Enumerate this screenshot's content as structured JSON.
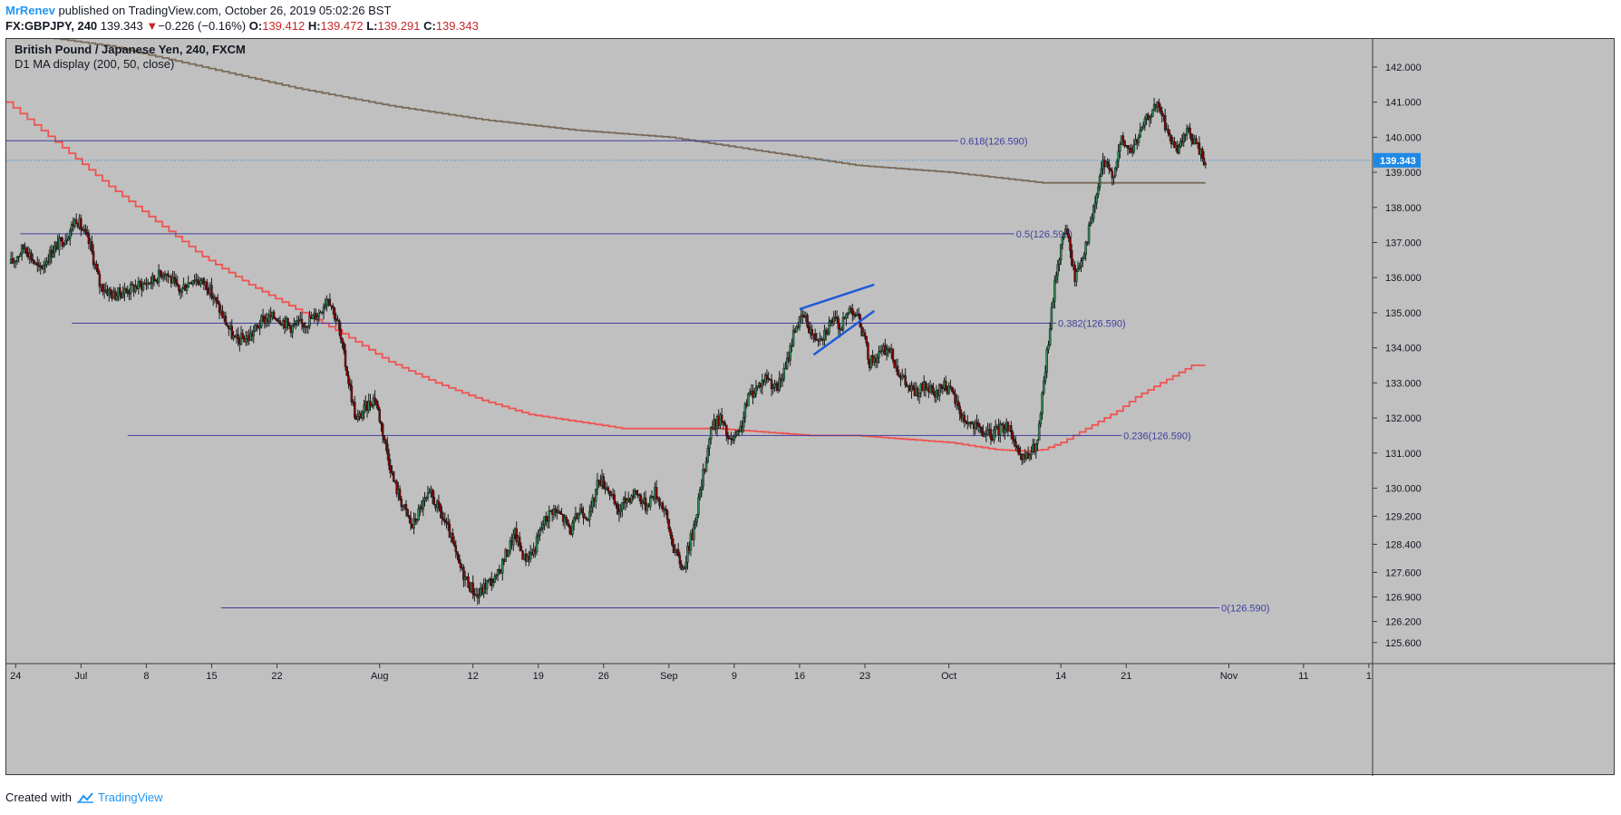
{
  "header": {
    "author": "MrRenev",
    "published_text": " published on TradingView.com, October 26, 2019 05:02:26 BST",
    "symbol": "FX:GBPJPY, 240",
    "last": "139.343",
    "down_arrow": "▼",
    "change": "−0.226 (−0.16%)",
    "o_label": "O:",
    "o_value": "139.412",
    "h_label": "H:",
    "h_value": "139.472",
    "l_label": "L:",
    "l_value": "139.291",
    "c_label": "C:",
    "c_value": "139.343"
  },
  "legend": {
    "title": "British Pound / Japanese Yen, 240, FXCM",
    "indicator": "D1 MA display (200, 50, close)"
  },
  "footer": {
    "created_with": "Created with",
    "brand": "TradingView"
  },
  "colors": {
    "background": "#c0c0c0",
    "candle_up": "#2e8b57",
    "candle_down": "#8b0000",
    "wick": "#1a1a1a",
    "ma200": "#7a6a58",
    "ma50": "#ef5350",
    "fib": "#3f3f9f",
    "trendline": "#1e5bd6",
    "price_tag": "#1e88e5"
  },
  "chart_data": {
    "type": "candlestick",
    "title": "British Pound / Japanese Yen, 240, FXCM",
    "ylim": [
      125.0,
      142.8
    ],
    "y_ticks": [
      {
        "v": 142.0,
        "label": "142.000"
      },
      {
        "v": 141.0,
        "label": "141.000"
      },
      {
        "v": 140.0,
        "label": "140.000"
      },
      {
        "v": 139.0,
        "label": "139.000"
      },
      {
        "v": 138.0,
        "label": "138.000"
      },
      {
        "v": 137.0,
        "label": "137.000"
      },
      {
        "v": 136.0,
        "label": "136.000"
      },
      {
        "v": 135.0,
        "label": "135.000"
      },
      {
        "v": 134.0,
        "label": "134.000"
      },
      {
        "v": 133.0,
        "label": "133.000"
      },
      {
        "v": 132.0,
        "label": "132.000"
      },
      {
        "v": 131.0,
        "label": "131.000"
      },
      {
        "v": 130.0,
        "label": "130.000"
      },
      {
        "v": 129.2,
        "label": "129.200"
      },
      {
        "v": 128.4,
        "label": "128.400"
      },
      {
        "v": 127.6,
        "label": "127.600"
      },
      {
        "v": 126.9,
        "label": "126.900"
      },
      {
        "v": 126.2,
        "label": "126.200"
      },
      {
        "v": 125.6,
        "label": "125.600"
      }
    ],
    "x_ticks": [
      {
        "day": 0,
        "label": "24"
      },
      {
        "day": 7,
        "label": "Jul"
      },
      {
        "day": 14,
        "label": "8"
      },
      {
        "day": 21,
        "label": "15"
      },
      {
        "day": 28,
        "label": "22"
      },
      {
        "day": 39,
        "label": "Aug"
      },
      {
        "day": 49,
        "label": "12"
      },
      {
        "day": 56,
        "label": "19"
      },
      {
        "day": 63,
        "label": "26"
      },
      {
        "day": 70,
        "label": "Sep"
      },
      {
        "day": 77,
        "label": "9"
      },
      {
        "day": 84,
        "label": "16"
      },
      {
        "day": 91,
        "label": "23"
      },
      {
        "day": 100,
        "label": "Oct"
      },
      {
        "day": 112,
        "label": "14"
      },
      {
        "day": 119,
        "label": "21"
      },
      {
        "day": 130,
        "label": "Nov"
      },
      {
        "day": 138,
        "label": "11"
      },
      {
        "day": 145,
        "label": "1"
      }
    ],
    "x_domain_days": [
      -1.0,
      145.4
    ],
    "last_price": {
      "value": 139.343,
      "label": "139.343"
    },
    "price_path": [
      [
        -0.5,
        136.4
      ],
      [
        1,
        136.9
      ],
      [
        2.5,
        136.2
      ],
      [
        4,
        136.8
      ],
      [
        5.5,
        137.2
      ],
      [
        6.5,
        137.7
      ],
      [
        8,
        136.9
      ],
      [
        9,
        135.8
      ],
      [
        10.5,
        135.5
      ],
      [
        12.5,
        135.7
      ],
      [
        14.5,
        135.9
      ],
      [
        16,
        136.2
      ],
      [
        17.5,
        135.6
      ],
      [
        19,
        136.0
      ],
      [
        20.5,
        135.8
      ],
      [
        22,
        135.0
      ],
      [
        23.5,
        134.2
      ],
      [
        25,
        134.3
      ],
      [
        26.5,
        134.8
      ],
      [
        28,
        134.9
      ],
      [
        29.5,
        134.6
      ],
      [
        31,
        134.7
      ],
      [
        32.5,
        135.0
      ],
      [
        33.5,
        135.5
      ],
      [
        34.5,
        134.7
      ],
      [
        35.5,
        133.3
      ],
      [
        36.5,
        131.9
      ],
      [
        37.5,
        132.3
      ],
      [
        38.5,
        132.6
      ],
      [
        39.5,
        131.4
      ],
      [
        40.5,
        130.2
      ],
      [
        41.5,
        129.5
      ],
      [
        42.5,
        128.9
      ],
      [
        43.5,
        129.5
      ],
      [
        44.5,
        129.8
      ],
      [
        45.5,
        129.3
      ],
      [
        46.5,
        128.7
      ],
      [
        47.5,
        127.8
      ],
      [
        48.5,
        127.3
      ],
      [
        49.5,
        126.9
      ],
      [
        50.5,
        127.3
      ],
      [
        51.5,
        127.4
      ],
      [
        52.5,
        128.1
      ],
      [
        53.5,
        128.7
      ],
      [
        54.5,
        128.0
      ],
      [
        55.5,
        128.2
      ],
      [
        56.5,
        129.0
      ],
      [
        57.5,
        129.4
      ],
      [
        58.5,
        129.2
      ],
      [
        59.5,
        128.8
      ],
      [
        60.5,
        129.4
      ],
      [
        61.5,
        129.2
      ],
      [
        62.5,
        130.3
      ],
      [
        63.5,
        130.0
      ],
      [
        64.5,
        129.3
      ],
      [
        65.5,
        129.7
      ],
      [
        66.5,
        129.9
      ],
      [
        67.5,
        129.5
      ],
      [
        68.5,
        129.9
      ],
      [
        69.5,
        129.4
      ],
      [
        70.5,
        128.3
      ],
      [
        71.5,
        127.7
      ],
      [
        72.5,
        128.7
      ],
      [
        73.5,
        130.1
      ],
      [
        74.5,
        131.7
      ],
      [
        75.5,
        132.0
      ],
      [
        76.5,
        131.3
      ],
      [
        77.5,
        131.5
      ],
      [
        78.5,
        132.6
      ],
      [
        79.5,
        132.9
      ],
      [
        80.5,
        133.2
      ],
      [
        81.5,
        132.8
      ],
      [
        82.5,
        133.4
      ],
      [
        83.5,
        134.6
      ],
      [
        84.5,
        134.9
      ],
      [
        85.5,
        134.3
      ],
      [
        86.5,
        134.4
      ],
      [
        87.5,
        134.8
      ],
      [
        88.5,
        134.6
      ],
      [
        89.5,
        135.2
      ],
      [
        90.5,
        134.7
      ],
      [
        91.5,
        133.6
      ],
      [
        92.5,
        133.8
      ],
      [
        93.5,
        134.0
      ],
      [
        94.5,
        133.4
      ],
      [
        95.5,
        132.9
      ],
      [
        96.5,
        132.7
      ],
      [
        97.5,
        132.9
      ],
      [
        98.5,
        132.6
      ],
      [
        99.5,
        133.0
      ],
      [
        100.5,
        132.6
      ],
      [
        101.5,
        132.0
      ],
      [
        102.5,
        131.8
      ],
      [
        103.5,
        131.6
      ],
      [
        104.5,
        131.5
      ],
      [
        105.5,
        131.7
      ],
      [
        106.5,
        131.8
      ],
      [
        107.5,
        130.8
      ],
      [
        108.5,
        130.9
      ],
      [
        109.5,
        131.3
      ],
      [
        110.5,
        133.8
      ],
      [
        111.5,
        136.2
      ],
      [
        112.5,
        137.5
      ],
      [
        113.5,
        136.0
      ],
      [
        114.5,
        136.8
      ],
      [
        115.5,
        137.9
      ],
      [
        116.5,
        139.3
      ],
      [
        117.5,
        138.9
      ],
      [
        118.5,
        139.9
      ],
      [
        119.5,
        139.6
      ],
      [
        120.5,
        140.1
      ],
      [
        121.5,
        140.7
      ],
      [
        122.5,
        140.9
      ],
      [
        123.5,
        140.1
      ],
      [
        124.5,
        139.5
      ],
      [
        125.5,
        140.2
      ],
      [
        126.5,
        139.8
      ],
      [
        127.5,
        139.3
      ]
    ],
    "ma50": [
      [
        -1,
        141.0
      ],
      [
        5,
        139.7
      ],
      [
        10,
        138.6
      ],
      [
        15,
        137.6
      ],
      [
        20,
        136.6
      ],
      [
        25,
        135.8
      ],
      [
        30,
        135.1
      ],
      [
        35,
        134.4
      ],
      [
        40,
        133.6
      ],
      [
        45,
        133.0
      ],
      [
        50,
        132.5
      ],
      [
        55,
        132.1
      ],
      [
        60,
        131.9
      ],
      [
        65,
        131.7
      ],
      [
        70,
        131.7
      ],
      [
        75,
        131.7
      ],
      [
        80,
        131.6
      ],
      [
        85,
        131.5
      ],
      [
        90,
        131.5
      ],
      [
        95,
        131.4
      ],
      [
        100,
        131.3
      ],
      [
        105,
        131.1
      ],
      [
        108,
        131.05
      ],
      [
        110,
        131.1
      ],
      [
        112,
        131.3
      ],
      [
        114,
        131.6
      ],
      [
        116,
        131.9
      ],
      [
        118,
        132.2
      ],
      [
        120,
        132.6
      ],
      [
        122,
        132.9
      ],
      [
        124,
        133.2
      ],
      [
        126,
        133.5
      ],
      [
        127.5,
        133.5
      ]
    ],
    "ma200": [
      [
        -1,
        143.0
      ],
      [
        10,
        142.6
      ],
      [
        20,
        142.0
      ],
      [
        30,
        141.4
      ],
      [
        40,
        140.9
      ],
      [
        50,
        140.5
      ],
      [
        60,
        140.2
      ],
      [
        70,
        140.0
      ],
      [
        80,
        139.6
      ],
      [
        90,
        139.2
      ],
      [
        100,
        139.0
      ],
      [
        110,
        138.7
      ],
      [
        115,
        138.7
      ],
      [
        120,
        138.7
      ],
      [
        127.5,
        138.7
      ]
    ],
    "fib_levels": [
      {
        "value": 139.9,
        "label": "0.618(126.590)",
        "x_start": -1,
        "x_end": 101
      },
      {
        "value": 137.25,
        "label": "0.5(126.590)",
        "x_start": 0.5,
        "x_end": 107
      },
      {
        "value": 134.7,
        "label": "0.382(126.590)",
        "x_start": 6,
        "x_end": 111.5
      },
      {
        "value": 131.5,
        "label": "0.236(126.590)",
        "x_start": 12,
        "x_end": 118.5
      },
      {
        "value": 126.59,
        "label": "0(126.590)",
        "x_start": 22,
        "x_end": 129
      }
    ],
    "trendlines": [
      {
        "x1": 84,
        "y1": 135.1,
        "x2": 92,
        "y2": 135.8
      },
      {
        "x1": 85.5,
        "y1": 133.8,
        "x2": 92,
        "y2": 135.05
      }
    ]
  }
}
